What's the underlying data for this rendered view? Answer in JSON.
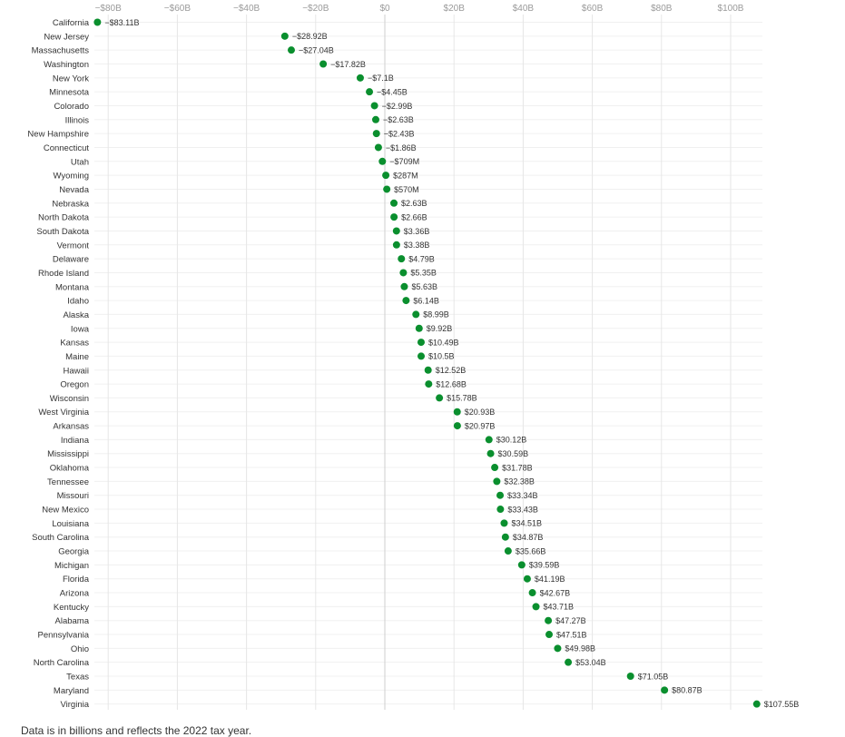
{
  "footnote": "Data is in billions and reflects the 2022 tax year.",
  "chart_data": {
    "type": "scatter",
    "orientation": "horizontal dot plot",
    "x_ticks": [
      -80,
      -60,
      -40,
      -20,
      0,
      20,
      40,
      60,
      80,
      100
    ],
    "x_tick_labels": [
      "−$80B",
      "−$60B",
      "−$40B",
      "−$20B",
      "$0",
      "$20B",
      "$40B",
      "$60B",
      "$80B",
      "$100B"
    ],
    "xlim": [
      -83.11,
      107.55
    ],
    "grid": true,
    "dot_color": "#0a8f2e",
    "categories": [
      "California",
      "New Jersey",
      "Massachusetts",
      "Washington",
      "New York",
      "Minnesota",
      "Colorado",
      "Illinois",
      "New Hampshire",
      "Connecticut",
      "Utah",
      "Wyoming",
      "Nevada",
      "Nebraska",
      "North Dakota",
      "South Dakota",
      "Vermont",
      "Delaware",
      "Rhode Island",
      "Montana",
      "Idaho",
      "Alaska",
      "Iowa",
      "Kansas",
      "Maine",
      "Hawaii",
      "Oregon",
      "Wisconsin",
      "West Virginia",
      "Arkansas",
      "Indiana",
      "Mississippi",
      "Oklahoma",
      "Tennessee",
      "Missouri",
      "New Mexico",
      "Louisiana",
      "South Carolina",
      "Georgia",
      "Michigan",
      "Florida",
      "Arizona",
      "Kentucky",
      "Alabama",
      "Pennsylvania",
      "Ohio",
      "North Carolina",
      "Texas",
      "Maryland",
      "Virginia"
    ],
    "values": [
      -83.11,
      -28.92,
      -27.04,
      -17.82,
      -7.1,
      -4.45,
      -2.99,
      -2.63,
      -2.43,
      -1.86,
      -0.709,
      0.287,
      0.57,
      2.63,
      2.66,
      3.36,
      3.38,
      4.79,
      5.35,
      5.63,
      6.14,
      8.99,
      9.92,
      10.49,
      10.5,
      12.52,
      12.68,
      15.78,
      20.93,
      20.97,
      30.12,
      30.59,
      31.78,
      32.38,
      33.34,
      33.43,
      34.51,
      34.87,
      35.66,
      39.59,
      41.19,
      42.67,
      43.71,
      47.27,
      47.51,
      49.98,
      53.04,
      71.05,
      80.87,
      107.55
    ],
    "value_labels": [
      "−$83.11B",
      "−$28.92B",
      "−$27.04B",
      "−$17.82B",
      "−$7.1B",
      "−$4.45B",
      "−$2.99B",
      "−$2.63B",
      "−$2.43B",
      "−$1.86B",
      "−$709M",
      "$287M",
      "$570M",
      "$2.63B",
      "$2.66B",
      "$3.36B",
      "$3.38B",
      "$4.79B",
      "$5.35B",
      "$5.63B",
      "$6.14B",
      "$8.99B",
      "$9.92B",
      "$10.49B",
      "$10.5B",
      "$12.52B",
      "$12.68B",
      "$15.78B",
      "$20.93B",
      "$20.97B",
      "$30.12B",
      "$30.59B",
      "$31.78B",
      "$32.38B",
      "$33.34B",
      "$33.43B",
      "$34.51B",
      "$34.87B",
      "$35.66B",
      "$39.59B",
      "$41.19B",
      "$42.67B",
      "$43.71B",
      "$47.27B",
      "$47.51B",
      "$49.98B",
      "$53.04B",
      "$71.05B",
      "$80.87B",
      "$107.55B"
    ]
  }
}
